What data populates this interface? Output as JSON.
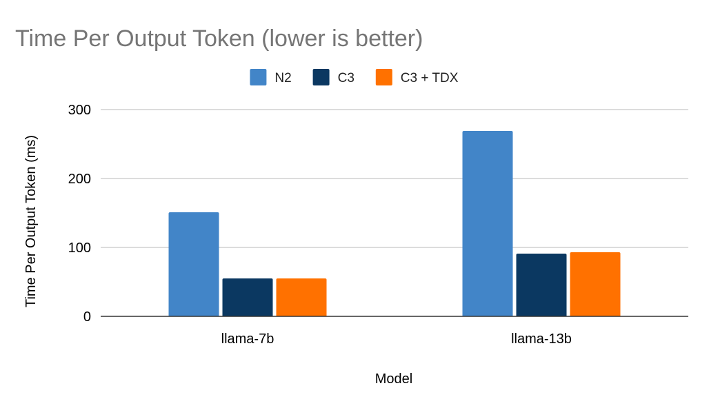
{
  "chart_data": {
    "type": "bar",
    "title": "Time Per Output Token (lower is better)",
    "xlabel": "Model",
    "ylabel": "Time Per Output Token (ms)",
    "categories": [
      "llama-7b",
      "llama-13b"
    ],
    "series": [
      {
        "name": "N2",
        "color": "#4285c8",
        "values": [
          151,
          269
        ]
      },
      {
        "name": "C3",
        "color": "#0b3861",
        "values": [
          55,
          91
        ]
      },
      {
        "name": "C3 + TDX",
        "color": "#ff7100",
        "values": [
          55,
          93
        ]
      }
    ],
    "ylim": [
      0,
      300
    ],
    "yticks": [
      0,
      100,
      200,
      300
    ],
    "grid": true,
    "legend_position": "top-center"
  }
}
